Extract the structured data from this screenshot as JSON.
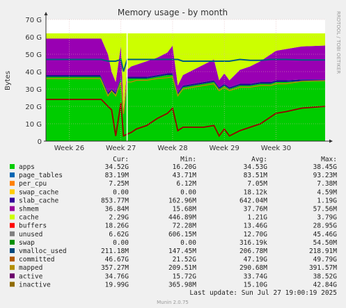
{
  "chart_data": {
    "type": "area",
    "title": "Memory usage - by month",
    "ylabel": "Bytes",
    "side_label": "RRDTOOL / TOBI OETIKER",
    "ylim": [
      0,
      70
    ],
    "y_unit": "G",
    "y_ticks": [
      "0",
      "10 G",
      "20 G",
      "30 G",
      "40 G",
      "50 G",
      "60 G",
      "70 G"
    ],
    "x_ticks": [
      "Week 26",
      "Week 27",
      "Week 28",
      "Week 29",
      "Week 30"
    ],
    "x_tick_positions_weeks": [
      26,
      27,
      28,
      29,
      30
    ],
    "x_range_weeks": [
      25.55,
      30.95
    ],
    "now_marker_week": 27.12,
    "grid": true,
    "series": [
      {
        "name": "apps",
        "color": "#00cc00",
        "cur": "34.52G",
        "min": "16.20G",
        "avg": "34.53G",
        "max": "38.45G"
      },
      {
        "name": "page_tables",
        "color": "#0066b3",
        "cur": "83.19M",
        "min": "43.71M",
        "avg": "83.51M",
        "max": "93.23M"
      },
      {
        "name": "per_cpu",
        "color": "#ff8000",
        "cur": "7.25M",
        "min": "6.12M",
        "avg": "7.05M",
        "max": "7.38M"
      },
      {
        "name": "swap_cache",
        "color": "#ffcc00",
        "cur": "0.00",
        "min": "0.00",
        "avg": "18.12k",
        "max": "4.59M"
      },
      {
        "name": "slab_cache",
        "color": "#330099",
        "cur": "853.77M",
        "min": "162.96M",
        "avg": "642.04M",
        "max": "1.19G"
      },
      {
        "name": "shmem",
        "color": "#990099",
        "cur": "36.84M",
        "min": "15.68M",
        "avg": "37.76M",
        "max": "57.56M"
      },
      {
        "name": "cache",
        "color": "#ccff00",
        "cur": "2.29G",
        "min": "446.89M",
        "avg": "1.21G",
        "max": "3.79G"
      },
      {
        "name": "buffers",
        "color": "#ff0000",
        "cur": "18.26G",
        "min": "72.28M",
        "avg": "13.46G",
        "max": "28.95G"
      },
      {
        "name": "unused",
        "color": "#808080",
        "cur": "6.62G",
        "min": "606.15M",
        "avg": "12.70G",
        "max": "45.46G"
      },
      {
        "name": "swap",
        "color": "#008f00",
        "cur": "0.00",
        "min": "0.00",
        "avg": "316.19k",
        "max": "54.50M"
      },
      {
        "name": "vmalloc_used",
        "color": "#00487d",
        "cur": "211.18M",
        "min": "147.45M",
        "avg": "206.78M",
        "max": "218.91M"
      },
      {
        "name": "committed",
        "color": "#b35a00",
        "cur": "46.67G",
        "min": "21.52G",
        "avg": "47.19G",
        "max": "49.79G"
      },
      {
        "name": "mapped",
        "color": "#b38f00",
        "cur": "357.27M",
        "min": "209.51M",
        "avg": "290.68M",
        "max": "391.57M"
      },
      {
        "name": "active",
        "color": "#6b006b",
        "cur": "34.76G",
        "min": "15.72G",
        "avg": "33.74G",
        "max": "38.52G"
      },
      {
        "name": "inactive",
        "color": "#8f6b00",
        "cur": "19.99G",
        "min": "365.98M",
        "avg": "15.10G",
        "max": "42.84G"
      }
    ],
    "legend_colors": [
      "#00cc00",
      "#0066b3",
      "#ff8000",
      "#ffcc00",
      "#330099",
      "#990099",
      "#ccff00",
      "#ff0000",
      "#808080",
      "#008f00",
      "#00487d",
      "#b35a00",
      "#b38f00",
      "#6b006b",
      "#8f6b00"
    ],
    "plot_colors": {
      "apps": "#00cc00",
      "slab_cache": "#1a1a8c",
      "buffers": "#9900b3",
      "cache": "#ccff00",
      "committed": "#005f7f",
      "inactive": "#990000",
      "active": "#cc8800",
      "vmalloc_used": "#006600"
    },
    "profile_weeks": [
      25.55,
      26.6,
      26.62,
      26.75,
      26.82,
      26.9,
      27.0,
      27.05,
      27.12,
      27.2,
      27.3,
      27.5,
      27.7,
      27.9,
      28.0,
      28.1,
      28.2,
      28.4,
      28.6,
      28.8,
      28.9,
      29.0,
      29.1,
      29.3,
      29.5,
      29.7,
      29.9,
      30.0,
      30.2,
      30.5,
      30.95
    ],
    "profile": {
      "apps": [
        37,
        37,
        36,
        27,
        29,
        27,
        36,
        16.5,
        36,
        36,
        36,
        36,
        37,
        38,
        38,
        27,
        31,
        32,
        33,
        34,
        30,
        32,
        30,
        32,
        32,
        33,
        33,
        34,
        34,
        34.5,
        34.5
      ],
      "slab": [
        1.0,
        1.0,
        1.0,
        1.0,
        1.0,
        1.0,
        1.0,
        0.5,
        1.0,
        1.0,
        1.0,
        1.0,
        1.0,
        1.0,
        1.0,
        1.0,
        1.0,
        1.0,
        1.0,
        1.0,
        1.0,
        1.0,
        1.0,
        1.0,
        1.0,
        1.0,
        1.0,
        1.0,
        1.0,
        1.0,
        1.0
      ],
      "buffers": [
        23,
        23,
        23,
        22,
        10,
        6,
        18,
        1,
        4,
        6,
        7,
        9,
        10,
        12,
        16,
        4,
        6,
        8,
        10,
        12,
        4,
        6,
        4,
        8,
        10,
        12,
        16,
        17,
        18,
        19,
        19.5
      ],
      "cache": [
        2.0,
        2.0,
        2.0,
        2.0,
        2.0,
        2.0,
        2.0,
        1.0,
        2.0,
        2.0,
        2.0,
        2.0,
        2.0,
        2.0,
        2.0,
        2.0,
        2.0,
        2.0,
        2.0,
        2.0,
        2.0,
        2.0,
        2.0,
        2.0,
        2.0,
        2.0,
        2.0,
        2.0,
        2.0,
        2.2,
        2.3
      ],
      "committed": [
        47,
        47,
        47,
        46,
        46,
        46,
        47,
        40,
        47,
        47,
        47,
        47,
        47,
        47,
        47,
        47,
        46,
        46,
        46,
        46,
        46,
        46,
        46,
        47,
        46.5,
        46.5,
        47,
        47,
        47,
        46.7,
        46.7
      ],
      "inactive": [
        24,
        24,
        24,
        20,
        18,
        3,
        22,
        3,
        4,
        5,
        7,
        9,
        13,
        16,
        19,
        6,
        8,
        8,
        8,
        9,
        3,
        7,
        3,
        6,
        8,
        10,
        14,
        16,
        17,
        19,
        20
      ],
      "active": [
        36,
        36,
        35,
        26,
        29,
        26,
        34,
        15.7,
        34,
        34,
        35,
        35,
        36,
        36.5,
        37,
        26,
        30,
        31,
        32,
        33,
        29,
        31,
        29,
        31,
        31,
        32,
        32,
        33,
        33,
        34.5,
        34.8
      ]
    }
  },
  "table": {
    "headers": [
      "Cur:",
      "Min:",
      "Avg:",
      "Max:"
    ]
  },
  "footer": {
    "last_update": "Last update: Sun Jul 27 19:00:19 2025",
    "version": "Munin 2.0.75"
  }
}
